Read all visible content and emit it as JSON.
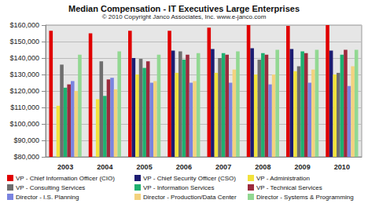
{
  "chart_data": {
    "type": "bar",
    "title": "Median Compensation - IT Executives Large Enterprises",
    "subtitle": "© 2010 Copyright Janco Associates, Inc. www.e-janco.com",
    "categories": [
      "2003",
      "2004",
      "2005",
      "2006",
      "2007",
      "2008",
      "2009",
      "2010"
    ],
    "series": [
      {
        "name": "VP - Chief Information Officer (CIO)",
        "color": "#e00000",
        "values": [
          156500,
          155000,
          156500,
          156500,
          158500,
          160000,
          159500,
          160000
        ]
      },
      {
        "name": "VP - Chief Security Officer (CSO)",
        "color": "#1c1c72",
        "values": [
          null,
          null,
          140000,
          144500,
          145500,
          146000,
          145500,
          144500
        ]
      },
      {
        "name": "VP - Administration",
        "color": "#f2e23c",
        "values": [
          111000,
          115000,
          130000,
          131000,
          131000,
          130000,
          132000,
          130000
        ]
      },
      {
        "name": "VP - Consulting Services",
        "color": "#6e6e6e",
        "values": [
          136000,
          138000,
          139500,
          144000,
          140000,
          139000,
          135000,
          131000
        ]
      },
      {
        "name": "VP - Information Services",
        "color": "#1fb070",
        "values": [
          122000,
          117000,
          134000,
          139000,
          143000,
          143000,
          144000,
          142000
        ]
      },
      {
        "name": "VP - Technical Services",
        "color": "#9c2a3c",
        "values": [
          124000,
          127000,
          138000,
          142000,
          142000,
          142000,
          143000,
          145000
        ]
      },
      {
        "name": "Director - I.S. Planning",
        "color": "#7a84e0",
        "values": [
          126000,
          128000,
          125000,
          125000,
          125000,
          124000,
          125000,
          123000
        ]
      },
      {
        "name": "Director - Production/Data Center",
        "color": "#f3d27e",
        "values": [
          120000,
          121000,
          126000,
          126000,
          133000,
          130000,
          133000,
          135000
        ]
      },
      {
        "name": "Director - Systems & Programming",
        "color": "#92d892",
        "values": [
          142000,
          144000,
          142000,
          143000,
          144000,
          145000,
          145000,
          145000
        ]
      }
    ],
    "ylim": [
      80000,
      160000
    ],
    "yticks": [
      {
        "value": 80000,
        "label": "$80,000"
      },
      {
        "value": 90000,
        "label": "$90,000"
      },
      {
        "value": 100000,
        "label": "$100,000"
      },
      {
        "value": 110000,
        "label": "$110,000"
      },
      {
        "value": 120000,
        "label": "$120,000"
      },
      {
        "value": 130000,
        "label": "$130,000"
      },
      {
        "value": 140000,
        "label": "$140,000"
      },
      {
        "value": 150000,
        "label": "$150,000"
      },
      {
        "value": 160000,
        "label": "$160,000"
      }
    ],
    "grid": true,
    "legend": "bottom"
  }
}
